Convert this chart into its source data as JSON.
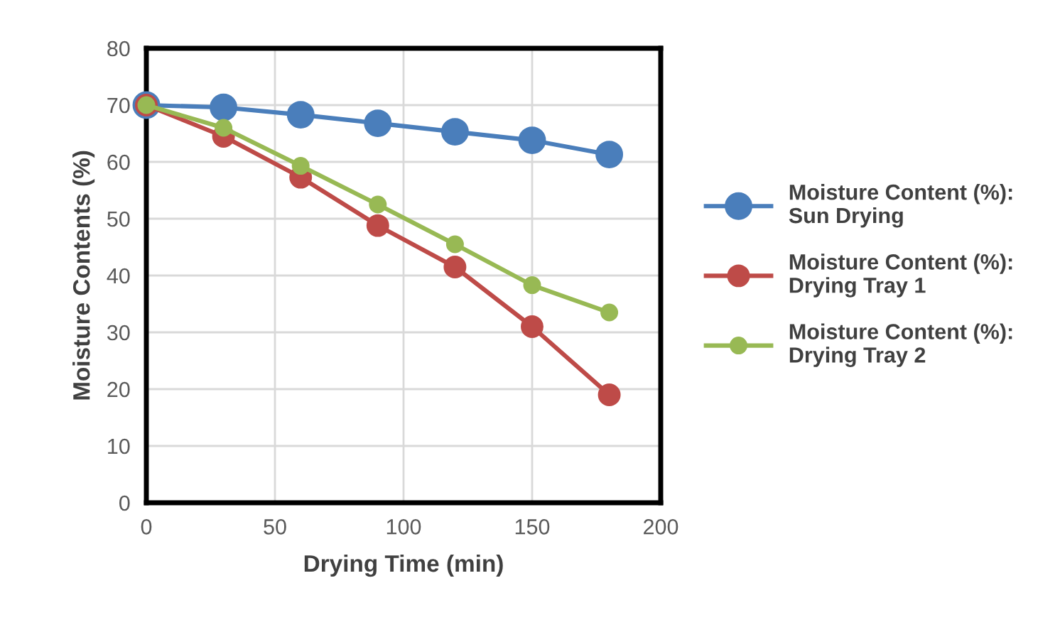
{
  "chart_data": {
    "type": "line",
    "xlabel": "Drying Time (min)",
    "ylabel": "Moisture Contents (%)",
    "x": [
      0,
      30,
      60,
      90,
      120,
      150,
      180
    ],
    "series": [
      {
        "name": "Moisture Content (%):\nSun Drying",
        "color": "#4a7ebb",
        "values": [
          70,
          69.6,
          68.3,
          66.8,
          65.3,
          63.8,
          61.3
        ]
      },
      {
        "name": "Moisture Content (%):\nDrying Tray 1",
        "color": "#be4b48",
        "values": [
          70,
          64.5,
          57.3,
          48.8,
          41.5,
          31,
          19
        ]
      },
      {
        "name": "Moisture Content (%):\nDrying Tray 2",
        "color": "#98b954",
        "values": [
          70,
          66,
          59.3,
          52.5,
          45.5,
          38.3,
          33.5
        ]
      }
    ],
    "xlim": [
      0,
      200
    ],
    "xticks": [
      0,
      50,
      100,
      150,
      200
    ],
    "ylim": [
      0,
      80
    ],
    "yticks": [
      0,
      10,
      20,
      30,
      40,
      50,
      60,
      70,
      80
    ],
    "grid": true,
    "legend": "right",
    "marker": "circle",
    "line_style": "solid"
  }
}
